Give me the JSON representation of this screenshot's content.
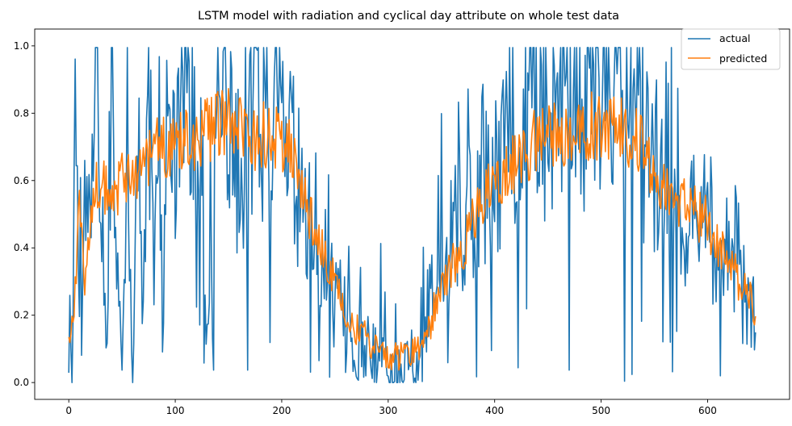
{
  "chart_data": {
    "type": "line",
    "title": "LSTM model with radiation and cyclical day attribute on whole test data",
    "xlabel": "",
    "ylabel": "",
    "xlim": [
      -32,
      677
    ],
    "ylim": [
      -0.05,
      1.05
    ],
    "xticks": [
      0,
      100,
      200,
      300,
      400,
      500,
      600
    ],
    "yticks": [
      0.0,
      0.2,
      0.4,
      0.6,
      0.8,
      1.0
    ],
    "xtick_labels": [
      "0",
      "100",
      "200",
      "300",
      "400",
      "500",
      "600"
    ],
    "ytick_labels": [
      "0.0",
      "0.2",
      "0.4",
      "0.6",
      "0.8",
      "1.0"
    ],
    "grid": false,
    "legend_position": "top-right",
    "colors": {
      "actual": "#1f77b4",
      "predicted": "#ff7f0e"
    },
    "series": [
      {
        "name": "actual",
        "x_start": 0,
        "x_step": 1,
        "values": []
      },
      {
        "name": "predicted",
        "x_start": 0,
        "x_step": 1,
        "values": []
      }
    ],
    "anchors": {
      "actual": [
        [
          0,
          0.21
        ],
        [
          3,
          0.05
        ],
        [
          5,
          0.72
        ],
        [
          8,
          0.72
        ],
        [
          12,
          0.15
        ],
        [
          15,
          0.55
        ],
        [
          20,
          0.45
        ],
        [
          25,
          0.84
        ],
        [
          30,
          0.74
        ],
        [
          35,
          0.06
        ],
        [
          40,
          0.88
        ],
        [
          45,
          0.3
        ],
        [
          50,
          0.06
        ],
        [
          55,
          0.93
        ],
        [
          60,
          0.06
        ],
        [
          65,
          0.76
        ],
        [
          70,
          0.13
        ],
        [
          75,
          0.96
        ],
        [
          80,
          0.4
        ],
        [
          85,
          0.99
        ],
        [
          88,
          0.02
        ],
        [
          92,
          0.98
        ],
        [
          100,
          0.7
        ],
        [
          110,
          0.93
        ],
        [
          120,
          0.94
        ],
        [
          130,
          0.15
        ],
        [
          140,
          0.95
        ],
        [
          150,
          0.9
        ],
        [
          160,
          0.6
        ],
        [
          170,
          0.87
        ],
        [
          180,
          0.84
        ],
        [
          190,
          0.83
        ],
        [
          200,
          0.76
        ],
        [
          210,
          0.7
        ],
        [
          220,
          0.58
        ],
        [
          230,
          0.42
        ],
        [
          240,
          0.35
        ],
        [
          250,
          0.3
        ],
        [
          260,
          0.17
        ],
        [
          270,
          0.14
        ],
        [
          280,
          0.1
        ],
        [
          290,
          0.08
        ],
        [
          300,
          0.05
        ],
        [
          305,
          0.01
        ],
        [
          310,
          0.02
        ],
        [
          320,
          0.08
        ],
        [
          330,
          0.05
        ],
        [
          340,
          0.28
        ],
        [
          350,
          0.46
        ],
        [
          360,
          0.43
        ],
        [
          370,
          0.52
        ],
        [
          380,
          0.6
        ],
        [
          390,
          0.64
        ],
        [
          400,
          0.62
        ],
        [
          410,
          0.82
        ],
        [
          420,
          0.71
        ],
        [
          430,
          0.96
        ],
        [
          440,
          0.9
        ],
        [
          450,
          0.82
        ],
        [
          460,
          0.88
        ],
        [
          470,
          0.9
        ],
        [
          480,
          0.8
        ],
        [
          490,
          0.88
        ],
        [
          500,
          0.93
        ],
        [
          510,
          0.88
        ],
        [
          520,
          0.91
        ],
        [
          530,
          0.89
        ],
        [
          540,
          0.75
        ],
        [
          550,
          0.66
        ],
        [
          560,
          0.66
        ],
        [
          570,
          0.72
        ],
        [
          580,
          0.5
        ],
        [
          590,
          0.56
        ],
        [
          600,
          0.62
        ],
        [
          610,
          0.25
        ],
        [
          620,
          0.52
        ],
        [
          630,
          0.35
        ],
        [
          640,
          0.23
        ],
        [
          645,
          0.2
        ]
      ],
      "predicted": [
        [
          0,
          0.13
        ],
        [
          5,
          0.2
        ],
        [
          10,
          0.54
        ],
        [
          15,
          0.3
        ],
        [
          20,
          0.5
        ],
        [
          25,
          0.58
        ],
        [
          30,
          0.6
        ],
        [
          40,
          0.52
        ],
        [
          50,
          0.6
        ],
        [
          60,
          0.62
        ],
        [
          70,
          0.65
        ],
        [
          80,
          0.7
        ],
        [
          90,
          0.7
        ],
        [
          100,
          0.72
        ],
        [
          110,
          0.74
        ],
        [
          120,
          0.72
        ],
        [
          130,
          0.75
        ],
        [
          140,
          0.76
        ],
        [
          150,
          0.77
        ],
        [
          160,
          0.75
        ],
        [
          170,
          0.7
        ],
        [
          180,
          0.73
        ],
        [
          190,
          0.74
        ],
        [
          200,
          0.72
        ],
        [
          210,
          0.68
        ],
        [
          220,
          0.55
        ],
        [
          230,
          0.45
        ],
        [
          240,
          0.37
        ],
        [
          250,
          0.3
        ],
        [
          260,
          0.22
        ],
        [
          270,
          0.16
        ],
        [
          280,
          0.13
        ],
        [
          290,
          0.1
        ],
        [
          300,
          0.08
        ],
        [
          310,
          0.08
        ],
        [
          320,
          0.09
        ],
        [
          330,
          0.1
        ],
        [
          340,
          0.18
        ],
        [
          350,
          0.3
        ],
        [
          360,
          0.35
        ],
        [
          370,
          0.4
        ],
        [
          380,
          0.48
        ],
        [
          390,
          0.55
        ],
        [
          400,
          0.6
        ],
        [
          410,
          0.62
        ],
        [
          420,
          0.65
        ],
        [
          430,
          0.68
        ],
        [
          440,
          0.72
        ],
        [
          450,
          0.73
        ],
        [
          460,
          0.74
        ],
        [
          470,
          0.74
        ],
        [
          480,
          0.75
        ],
        [
          490,
          0.76
        ],
        [
          500,
          0.77
        ],
        [
          510,
          0.76
        ],
        [
          520,
          0.75
        ],
        [
          530,
          0.73
        ],
        [
          540,
          0.7
        ],
        [
          550,
          0.62
        ],
        [
          560,
          0.58
        ],
        [
          570,
          0.55
        ],
        [
          580,
          0.52
        ],
        [
          590,
          0.5
        ],
        [
          600,
          0.48
        ],
        [
          610,
          0.4
        ],
        [
          620,
          0.35
        ],
        [
          630,
          0.3
        ],
        [
          640,
          0.25
        ],
        [
          645,
          0.2
        ]
      ]
    },
    "noise": {
      "actual_amplitude": 0.28,
      "predicted_amplitude": 0.09
    }
  }
}
